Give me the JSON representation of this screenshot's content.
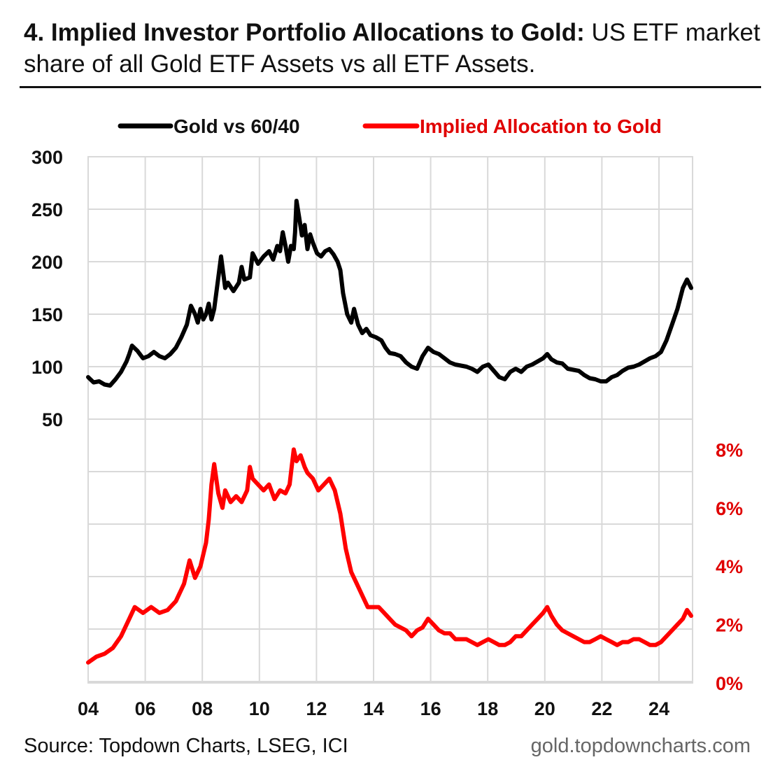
{
  "header": {
    "title_bold": "4. Implied Investor Portfolio Allocations to Gold:",
    "title_rest": " US ETF market share of all Gold ETF Assets vs all ETF Assets."
  },
  "footer": {
    "source": "Source: Topdown Charts, LSEG, ICI",
    "site": "gold.topdowncharts.com"
  },
  "chart_data": {
    "type": "line",
    "x_tick_labels": [
      "04",
      "06",
      "08",
      "10",
      "12",
      "14",
      "16",
      "18",
      "20",
      "22",
      "24"
    ],
    "x_range": [
      2004,
      2025.4
    ],
    "left_axis": {
      "ticks": [
        "300",
        "250",
        "200",
        "150",
        "100",
        "50"
      ],
      "ylim": [
        0,
        300
      ]
    },
    "right_axis": {
      "ticks": [
        "8%",
        "6%",
        "4%",
        "2%",
        "0%"
      ],
      "ylim": [
        0,
        9
      ],
      "unit": "%"
    },
    "grid": true,
    "legend_position": "top",
    "series": [
      {
        "name": "Gold vs 60/40",
        "axis": "left",
        "color": "#000000",
        "points": [
          [
            2004.0,
            90
          ],
          [
            2004.2,
            85
          ],
          [
            2004.4,
            86
          ],
          [
            2004.6,
            83
          ],
          [
            2004.8,
            82
          ],
          [
            2005.0,
            88
          ],
          [
            2005.2,
            95
          ],
          [
            2005.4,
            105
          ],
          [
            2005.5,
            112
          ],
          [
            2005.6,
            120
          ],
          [
            2005.8,
            115
          ],
          [
            2006.0,
            108
          ],
          [
            2006.2,
            110
          ],
          [
            2006.4,
            114
          ],
          [
            2006.6,
            110
          ],
          [
            2006.8,
            108
          ],
          [
            2007.0,
            112
          ],
          [
            2007.2,
            118
          ],
          [
            2007.4,
            128
          ],
          [
            2007.6,
            140
          ],
          [
            2007.75,
            158
          ],
          [
            2007.9,
            150
          ],
          [
            2008.0,
            142
          ],
          [
            2008.1,
            155
          ],
          [
            2008.2,
            145
          ],
          [
            2008.3,
            150
          ],
          [
            2008.4,
            160
          ],
          [
            2008.5,
            145
          ],
          [
            2008.6,
            155
          ],
          [
            2008.75,
            185
          ],
          [
            2008.85,
            205
          ],
          [
            2009.0,
            175
          ],
          [
            2009.1,
            180
          ],
          [
            2009.3,
            172
          ],
          [
            2009.5,
            180
          ],
          [
            2009.6,
            195
          ],
          [
            2009.7,
            183
          ],
          [
            2009.9,
            185
          ],
          [
            2010.0,
            208
          ],
          [
            2010.2,
            198
          ],
          [
            2010.4,
            205
          ],
          [
            2010.6,
            210
          ],
          [
            2010.75,
            202
          ],
          [
            2010.9,
            215
          ],
          [
            2011.0,
            210
          ],
          [
            2011.1,
            228
          ],
          [
            2011.2,
            215
          ],
          [
            2011.3,
            200
          ],
          [
            2011.4,
            215
          ],
          [
            2011.5,
            212
          ],
          [
            2011.55,
            228
          ],
          [
            2011.6,
            258
          ],
          [
            2011.7,
            242
          ],
          [
            2011.8,
            225
          ],
          [
            2011.9,
            235
          ],
          [
            2012.0,
            212
          ],
          [
            2012.1,
            226
          ],
          [
            2012.2,
            218
          ],
          [
            2012.35,
            208
          ],
          [
            2012.5,
            205
          ],
          [
            2012.65,
            210
          ],
          [
            2012.8,
            212
          ],
          [
            2012.95,
            207
          ],
          [
            2013.1,
            200
          ],
          [
            2013.2,
            192
          ],
          [
            2013.3,
            170
          ],
          [
            2013.45,
            150
          ],
          [
            2013.6,
            142
          ],
          [
            2013.7,
            155
          ],
          [
            2013.85,
            140
          ],
          [
            2014.0,
            132
          ],
          [
            2014.15,
            136
          ],
          [
            2014.3,
            130
          ],
          [
            2014.5,
            128
          ],
          [
            2014.7,
            125
          ],
          [
            2014.85,
            118
          ],
          [
            2015.0,
            113
          ],
          [
            2015.2,
            112
          ],
          [
            2015.4,
            110
          ],
          [
            2015.6,
            104
          ],
          [
            2015.8,
            100
          ],
          [
            2016.0,
            98
          ],
          [
            2016.2,
            110
          ],
          [
            2016.4,
            118
          ],
          [
            2016.6,
            114
          ],
          [
            2016.8,
            112
          ],
          [
            2017.0,
            108
          ],
          [
            2017.2,
            104
          ],
          [
            2017.4,
            102
          ],
          [
            2017.6,
            101
          ],
          [
            2017.8,
            100
          ],
          [
            2018.0,
            98
          ],
          [
            2018.2,
            95
          ],
          [
            2018.4,
            100
          ],
          [
            2018.6,
            102
          ],
          [
            2018.8,
            96
          ],
          [
            2019.0,
            90
          ],
          [
            2019.2,
            88
          ],
          [
            2019.4,
            95
          ],
          [
            2019.6,
            98
          ],
          [
            2019.8,
            95
          ],
          [
            2020.0,
            100
          ],
          [
            2020.2,
            102
          ],
          [
            2020.4,
            105
          ],
          [
            2020.6,
            108
          ],
          [
            2020.75,
            112
          ],
          [
            2020.9,
            107
          ],
          [
            2021.1,
            104
          ],
          [
            2021.3,
            103
          ],
          [
            2021.5,
            98
          ],
          [
            2021.7,
            97
          ],
          [
            2021.9,
            96
          ],
          [
            2022.1,
            92
          ],
          [
            2022.3,
            89
          ],
          [
            2022.5,
            88
          ],
          [
            2022.7,
            86
          ],
          [
            2022.9,
            86
          ],
          [
            2023.1,
            90
          ],
          [
            2023.3,
            92
          ],
          [
            2023.5,
            96
          ],
          [
            2023.7,
            99
          ],
          [
            2023.9,
            100
          ],
          [
            2024.1,
            102
          ],
          [
            2024.3,
            105
          ],
          [
            2024.5,
            108
          ],
          [
            2024.7,
            110
          ],
          [
            2024.9,
            114
          ],
          [
            2025.1,
            125
          ],
          [
            2025.3,
            140
          ],
          [
            2025.5,
            155
          ],
          [
            2025.7,
            175
          ],
          [
            2025.85,
            183
          ],
          [
            2026.0,
            175
          ]
        ]
      },
      {
        "name": "Implied Allocation to Gold",
        "axis": "right",
        "color": "#ff0000",
        "points": [
          [
            2004.0,
            0.7
          ],
          [
            2004.3,
            0.9
          ],
          [
            2004.6,
            1.0
          ],
          [
            2004.9,
            1.2
          ],
          [
            2005.2,
            1.6
          ],
          [
            2005.5,
            2.2
          ],
          [
            2005.7,
            2.6
          ],
          [
            2006.0,
            2.4
          ],
          [
            2006.3,
            2.6
          ],
          [
            2006.6,
            2.4
          ],
          [
            2006.9,
            2.5
          ],
          [
            2007.2,
            2.8
          ],
          [
            2007.5,
            3.4
          ],
          [
            2007.7,
            4.2
          ],
          [
            2007.9,
            3.6
          ],
          [
            2008.1,
            4.0
          ],
          [
            2008.3,
            4.8
          ],
          [
            2008.4,
            5.6
          ],
          [
            2008.5,
            6.8
          ],
          [
            2008.6,
            7.5
          ],
          [
            2008.75,
            6.5
          ],
          [
            2008.9,
            6.0
          ],
          [
            2009.0,
            6.6
          ],
          [
            2009.2,
            6.2
          ],
          [
            2009.4,
            6.4
          ],
          [
            2009.6,
            6.2
          ],
          [
            2009.8,
            6.6
          ],
          [
            2009.9,
            7.4
          ],
          [
            2010.0,
            7.0
          ],
          [
            2010.2,
            6.8
          ],
          [
            2010.4,
            6.6
          ],
          [
            2010.6,
            6.8
          ],
          [
            2010.8,
            6.3
          ],
          [
            2011.0,
            6.6
          ],
          [
            2011.2,
            6.5
          ],
          [
            2011.35,
            6.8
          ],
          [
            2011.5,
            8.0
          ],
          [
            2011.6,
            7.6
          ],
          [
            2011.75,
            7.8
          ],
          [
            2011.9,
            7.4
          ],
          [
            2012.0,
            7.2
          ],
          [
            2012.2,
            7.0
          ],
          [
            2012.4,
            6.6
          ],
          [
            2012.6,
            6.8
          ],
          [
            2012.8,
            7.0
          ],
          [
            2013.0,
            6.6
          ],
          [
            2013.2,
            5.8
          ],
          [
            2013.4,
            4.6
          ],
          [
            2013.6,
            3.8
          ],
          [
            2013.8,
            3.4
          ],
          [
            2014.0,
            3.0
          ],
          [
            2014.2,
            2.6
          ],
          [
            2014.4,
            2.6
          ],
          [
            2014.6,
            2.6
          ],
          [
            2014.8,
            2.4
          ],
          [
            2015.0,
            2.2
          ],
          [
            2015.2,
            2.0
          ],
          [
            2015.4,
            1.9
          ],
          [
            2015.6,
            1.8
          ],
          [
            2015.8,
            1.6
          ],
          [
            2016.0,
            1.8
          ],
          [
            2016.2,
            1.9
          ],
          [
            2016.4,
            2.2
          ],
          [
            2016.6,
            2.0
          ],
          [
            2016.8,
            1.8
          ],
          [
            2017.0,
            1.7
          ],
          [
            2017.2,
            1.7
          ],
          [
            2017.4,
            1.5
          ],
          [
            2017.6,
            1.5
          ],
          [
            2017.8,
            1.5
          ],
          [
            2018.0,
            1.4
          ],
          [
            2018.2,
            1.3
          ],
          [
            2018.4,
            1.4
          ],
          [
            2018.6,
            1.5
          ],
          [
            2018.8,
            1.4
          ],
          [
            2019.0,
            1.3
          ],
          [
            2019.2,
            1.3
          ],
          [
            2019.4,
            1.4
          ],
          [
            2019.6,
            1.6
          ],
          [
            2019.8,
            1.6
          ],
          [
            2020.0,
            1.8
          ],
          [
            2020.2,
            2.0
          ],
          [
            2020.4,
            2.2
          ],
          [
            2020.6,
            2.4
          ],
          [
            2020.75,
            2.6
          ],
          [
            2020.9,
            2.3
          ],
          [
            2021.1,
            2.0
          ],
          [
            2021.3,
            1.8
          ],
          [
            2021.5,
            1.7
          ],
          [
            2021.7,
            1.6
          ],
          [
            2021.9,
            1.5
          ],
          [
            2022.1,
            1.4
          ],
          [
            2022.3,
            1.4
          ],
          [
            2022.5,
            1.5
          ],
          [
            2022.7,
            1.6
          ],
          [
            2022.9,
            1.5
          ],
          [
            2023.1,
            1.4
          ],
          [
            2023.3,
            1.3
          ],
          [
            2023.5,
            1.4
          ],
          [
            2023.7,
            1.4
          ],
          [
            2023.9,
            1.5
          ],
          [
            2024.1,
            1.5
          ],
          [
            2024.3,
            1.4
          ],
          [
            2024.5,
            1.3
          ],
          [
            2024.7,
            1.3
          ],
          [
            2024.9,
            1.4
          ],
          [
            2025.1,
            1.6
          ],
          [
            2025.3,
            1.8
          ],
          [
            2025.5,
            2.0
          ],
          [
            2025.7,
            2.2
          ],
          [
            2025.85,
            2.5
          ],
          [
            2026.0,
            2.3
          ]
        ]
      }
    ]
  }
}
